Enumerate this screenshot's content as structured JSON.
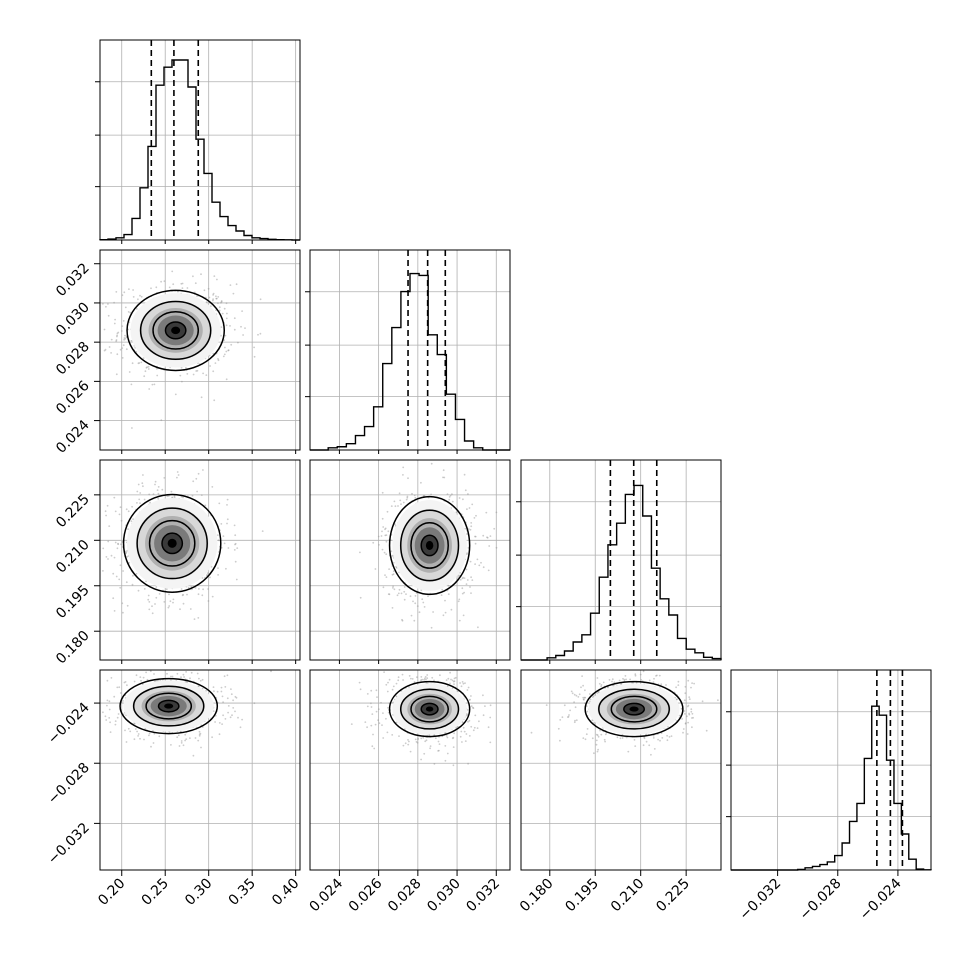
{
  "chart_data": {
    "type": "corner",
    "title": "",
    "grid": true,
    "colors": {
      "line": "#000000",
      "grid": "#b0b0b0",
      "points": "#9a9a9a"
    },
    "params": [
      {
        "range": [
          0.175,
          0.405
        ],
        "ticks": [
          0.2,
          0.25,
          0.3,
          0.35,
          0.4
        ],
        "tick_labels": [
          "0.20",
          "0.25",
          "0.30",
          "0.35",
          "0.40"
        ],
        "quantiles": [
          0.234,
          0.26,
          0.288
        ],
        "center": 0.262,
        "sd": 0.026,
        "hist": [
          0.002,
          0.005,
          0.012,
          0.03,
          0.12,
          0.29,
          0.52,
          0.86,
          0.96,
          1.0,
          1.0,
          0.85,
          0.56,
          0.37,
          0.21,
          0.13,
          0.08,
          0.05,
          0.025,
          0.012,
          0.008,
          0.004,
          0.002,
          0.001,
          0.0
        ]
      },
      {
        "range": [
          0.0225,
          0.0327
        ],
        "ticks": [
          0.024,
          0.026,
          0.028,
          0.03,
          0.032
        ],
        "tick_labels": [
          "0.024",
          "0.026",
          "0.028",
          "0.030",
          "0.032"
        ],
        "quantiles": [
          0.0275,
          0.0285,
          0.0294
        ],
        "center": 0.0285,
        "sd": 0.00095,
        "hist": [
          0.0,
          0.0,
          0.012,
          0.018,
          0.035,
          0.08,
          0.13,
          0.24,
          0.48,
          0.68,
          0.88,
          0.98,
          0.97,
          0.64,
          0.53,
          0.31,
          0.17,
          0.05,
          0.012,
          0.0,
          0.0,
          0.0
        ]
      },
      {
        "range": [
          0.1705,
          0.2365
        ],
        "ticks": [
          0.18,
          0.195,
          0.21,
          0.225
        ],
        "tick_labels": [
          "0.180",
          "0.195",
          "0.210",
          "0.225"
        ],
        "quantiles": [
          0.2,
          0.2077,
          0.2153
        ],
        "center": 0.2077,
        "sd": 0.0075,
        "hist": [
          0.0,
          0.0,
          0.0,
          0.012,
          0.025,
          0.05,
          0.1,
          0.14,
          0.26,
          0.46,
          0.64,
          0.76,
          0.92,
          0.97,
          0.8,
          0.51,
          0.34,
          0.25,
          0.12,
          0.06,
          0.04,
          0.015,
          0.008
        ]
      },
      {
        "range": [
          -0.0351,
          -0.0218
        ],
        "ticks": [
          -0.032,
          -0.028,
          -0.024
        ],
        "tick_labels": [
          "−0.032",
          "−0.028",
          "−0.024"
        ],
        "quantiles": [
          -0.0254,
          -0.0245,
          -0.0237
        ],
        "center": -0.0245,
        "sd": 0.00085,
        "hist": [
          0.0,
          0.0,
          0.0,
          0.0,
          0.0,
          0.0,
          0.0,
          0.0,
          0.0,
          0.003,
          0.012,
          0.02,
          0.03,
          0.045,
          0.08,
          0.15,
          0.27,
          0.37,
          0.62,
          0.91,
          0.86,
          0.61,
          0.37,
          0.2,
          0.06,
          0.005,
          0.001
        ]
      }
    ],
    "pairs": [
      {
        "row": 1,
        "col": 0,
        "peak": [
          0.262,
          0.0286
        ]
      },
      {
        "row": 2,
        "col": 0,
        "peak": [
          0.258,
          0.209
        ]
      },
      {
        "row": 2,
        "col": 1,
        "peak": [
          0.0286,
          0.2083
        ]
      },
      {
        "row": 3,
        "col": 0,
        "peak": [
          0.254,
          -0.0242
        ]
      },
      {
        "row": 3,
        "col": 1,
        "peak": [
          0.0286,
          -0.0244
        ]
      },
      {
        "row": 3,
        "col": 2,
        "peak": [
          0.2078,
          -0.0244
        ]
      }
    ],
    "contour_levels": [
      0.3,
      0.6,
      0.88,
      0.98
    ]
  }
}
